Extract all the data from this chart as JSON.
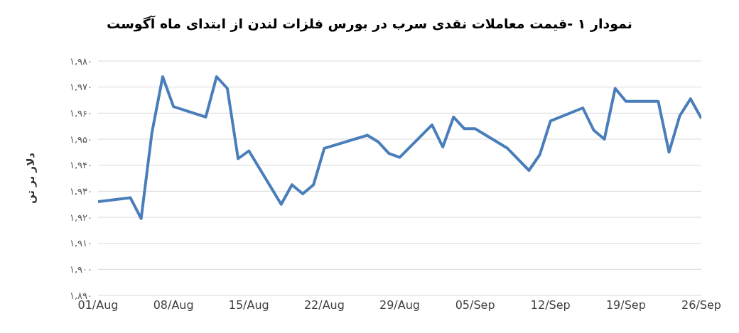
{
  "chart_data": {
    "type": "line",
    "title": "نمودار ۱ -قیمت معاملات نقدی سرب در بورس فلزات لندن از ابتدای ماه آگوست",
    "ylabel": "دلار بر تن",
    "x": [
      "--08-01",
      "--08-04",
      "--08-05",
      "--08-06",
      "--08-07",
      "--08-08",
      "--08-11",
      "--08-12",
      "--08-13",
      "--08-14",
      "--08-15",
      "--08-18",
      "--08-19",
      "--08-20",
      "--08-21",
      "--08-22",
      "--08-26",
      "--08-27",
      "--08-28",
      "--08-29",
      "--09-01",
      "--09-02",
      "--09-03",
      "--09-04",
      "--09-05",
      "--09-08",
      "--09-10",
      "--09-11",
      "--09-12",
      "--09-15",
      "--09-16",
      "--09-17",
      "--09-18",
      "--09-19",
      "--09-22",
      "--09-23",
      "--09-24",
      "--09-25",
      "--09-26"
    ],
    "series": [
      {
        "color": "#4a7ebb",
        "values": [
          1926,
          1927.5,
          1919.5,
          1952.5,
          1974,
          1962.5,
          1958.5,
          1974,
          1969.5,
          1942.5,
          1945.5,
          1925,
          1932.5,
          1929,
          1932.5,
          1946.5,
          1951.5,
          1949,
          1944.5,
          1943,
          1955.5,
          1947,
          1958.5,
          1954,
          1954,
          1946.5,
          1938,
          1944,
          1957,
          1962,
          1953.5,
          1950,
          1969.5,
          1964.5,
          1964.5,
          1945,
          1959,
          1965.5,
          1958
        ]
      }
    ],
    "xlim": [
      "--08-01",
      "--09-26"
    ],
    "xticks": [
      {
        "value": "--08-01",
        "label": "01/Aug"
      },
      {
        "value": "--08-08",
        "label": "08/Aug"
      },
      {
        "value": "--08-15",
        "label": "15/Aug"
      },
      {
        "value": "--08-22",
        "label": "22/Aug"
      },
      {
        "value": "--08-29",
        "label": "29/Aug"
      },
      {
        "value": "--09-05",
        "label": "05/Sep"
      },
      {
        "value": "--09-12",
        "label": "12/Sep"
      },
      {
        "value": "--09-19",
        "label": "19/Sep"
      },
      {
        "value": "--09-26",
        "label": "26/Sep"
      }
    ],
    "ylim": [
      1890,
      1980
    ],
    "yticks": [
      {
        "value": 1890,
        "label": "۱,۸۹۰"
      },
      {
        "value": 1900,
        "label": "۱,۹۰۰"
      },
      {
        "value": 1910,
        "label": "۱,۹۱۰"
      },
      {
        "value": 1920,
        "label": "۱,۹۲۰"
      },
      {
        "value": 1930,
        "label": "۱,۹۳۰"
      },
      {
        "value": 1940,
        "label": "۱,۹۴۰"
      },
      {
        "value": 1950,
        "label": "۱,۹۵۰"
      },
      {
        "value": 1960,
        "label": "۱,۹۶۰"
      },
      {
        "value": 1970,
        "label": "۱,۹۷۰"
      },
      {
        "value": 1980,
        "label": "۱,۹۸۰"
      }
    ],
    "grid": "y",
    "marker": "none",
    "line_style": "solid"
  }
}
